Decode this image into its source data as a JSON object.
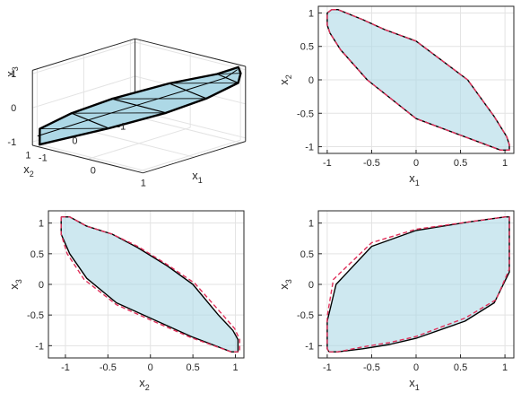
{
  "chart_data": [
    {
      "panel": "3d",
      "type": "3d-surface",
      "xlabel": "x",
      "xlabel_sub": "1",
      "ylabel": "x",
      "ylabel_sub": "2",
      "zlabel": "x",
      "zlabel_sub": "3",
      "xlim": [
        -1.1,
        1.1
      ],
      "ylim": [
        -1.1,
        1.1
      ],
      "zlim": [
        -1.1,
        1.1
      ],
      "xticks": [
        -1,
        0,
        1
      ],
      "yticks": [
        -1,
        0,
        1
      ],
      "zticks": [
        -1,
        0,
        1
      ],
      "grid": true,
      "fill_color": "#add8e6",
      "edge_color": "#000000"
    },
    {
      "panel": "x1x2",
      "type": "line",
      "xlabel": "x",
      "xlabel_sub": "1",
      "ylabel": "x",
      "ylabel_sub": "2",
      "xlim": [
        -1.1,
        1.1
      ],
      "ylim": [
        -1.1,
        1.1
      ],
      "xticks": [
        -1,
        -0.5,
        0,
        0.5,
        1
      ],
      "yticks": [
        -1,
        -0.5,
        0,
        0.5,
        1
      ],
      "grid": true,
      "fill_color": "#add8e6",
      "series": [
        {
          "style": "solid",
          "color": "#000000",
          "x": [
            -0.95,
            -0.88,
            -0.6,
            -0.35,
            0.0,
            0.58,
            0.88,
            1.02,
            1.05,
            1.05,
            0.95,
            0.0,
            -0.55,
            -0.85,
            -0.97,
            -1.0,
            -1.0,
            -0.95
          ],
          "y": [
            1.05,
            1.05,
            0.9,
            0.75,
            0.58,
            0.0,
            -0.55,
            -0.85,
            -0.97,
            -1.05,
            -1.05,
            -0.58,
            0.0,
            0.45,
            0.7,
            0.82,
            1.0,
            1.05
          ]
        },
        {
          "style": "dashed",
          "color": "#e0305a",
          "x": [
            -0.95,
            -0.88,
            -0.6,
            -0.35,
            0.0,
            0.58,
            0.88,
            1.02,
            1.05,
            1.05,
            0.95,
            0.0,
            -0.55,
            -0.85,
            -0.97,
            -1.0,
            -1.0,
            -0.95
          ],
          "y": [
            1.05,
            1.05,
            0.9,
            0.75,
            0.58,
            0.0,
            -0.55,
            -0.85,
            -0.97,
            -1.05,
            -1.05,
            -0.58,
            0.0,
            0.45,
            0.7,
            0.82,
            1.0,
            1.05
          ]
        }
      ]
    },
    {
      "panel": "x2x3",
      "type": "line",
      "xlabel": "x",
      "xlabel_sub": "2",
      "ylabel": "x",
      "ylabel_sub": "3",
      "xlim": [
        -1.2,
        1.1
      ],
      "ylim": [
        -1.2,
        1.2
      ],
      "xticks": [
        -1,
        -0.5,
        0,
        0.5,
        1
      ],
      "yticks": [
        -1,
        -0.5,
        0,
        0.5,
        1
      ],
      "grid": true,
      "fill_color": "#add8e6",
      "series": [
        {
          "style": "solid",
          "color": "#000000",
          "x": [
            -1.05,
            -0.95,
            -0.75,
            -0.45,
            -0.15,
            0.2,
            0.5,
            0.8,
            0.97,
            1.03,
            1.03,
            0.95,
            0.48,
            0.0,
            -0.4,
            -0.75,
            -0.95,
            -1.05,
            -1.05
          ],
          "y": [
            1.1,
            1.1,
            0.95,
            0.82,
            0.6,
            0.3,
            0.0,
            -0.5,
            -0.75,
            -0.9,
            -1.1,
            -1.1,
            -0.85,
            -0.55,
            -0.3,
            0.1,
            0.5,
            0.82,
            1.1
          ]
        },
        {
          "style": "dashed",
          "color": "#e0305a",
          "x": [
            -1.05,
            -0.95,
            -0.75,
            -0.45,
            -0.15,
            0.2,
            0.52,
            0.82,
            0.99,
            1.05,
            1.05,
            0.95,
            0.48,
            0.0,
            -0.4,
            -0.78,
            -0.98,
            -1.05,
            -1.05
          ],
          "y": [
            1.1,
            1.1,
            0.95,
            0.82,
            0.62,
            0.32,
            0.02,
            -0.45,
            -0.72,
            -0.9,
            -1.1,
            -1.1,
            -0.87,
            -0.58,
            -0.33,
            0.08,
            0.5,
            0.82,
            1.1
          ]
        }
      ]
    },
    {
      "panel": "x1x3",
      "type": "line",
      "xlabel": "x",
      "xlabel_sub": "1",
      "ylabel": "x",
      "ylabel_sub": "3",
      "xlim": [
        -1.1,
        1.1
      ],
      "ylim": [
        -1.2,
        1.2
      ],
      "xticks": [
        -1,
        -0.5,
        0,
        0.5,
        1
      ],
      "yticks": [
        -1,
        -0.5,
        0,
        0.5,
        1
      ],
      "grid": true,
      "fill_color": "#add8e6",
      "series": [
        {
          "style": "solid",
          "color": "#000000",
          "x": [
            -0.98,
            -0.88,
            -0.6,
            -0.3,
            0.0,
            0.55,
            0.88,
            1.05,
            1.05,
            1.0,
            0.9,
            0.6,
            0.0,
            -0.5,
            -0.9,
            -1.0,
            -1.0,
            -0.98
          ],
          "y": [
            -1.1,
            -1.1,
            -1.05,
            -0.98,
            -0.88,
            -0.6,
            -0.3,
            0.2,
            1.1,
            1.1,
            1.08,
            1.02,
            0.88,
            0.62,
            0.0,
            -0.6,
            -1.05,
            -1.1
          ]
        },
        {
          "style": "dashed",
          "color": "#e0305a",
          "x": [
            -0.98,
            -0.88,
            -0.6,
            -0.3,
            0.0,
            0.55,
            0.9,
            1.05,
            1.05,
            1.0,
            0.9,
            0.6,
            0.0,
            -0.5,
            -0.93,
            -1.0,
            -1.0,
            -0.98
          ],
          "y": [
            -1.1,
            -1.1,
            -1.02,
            -0.95,
            -0.85,
            -0.55,
            -0.25,
            0.25,
            1.1,
            1.1,
            1.08,
            1.02,
            0.9,
            0.68,
            0.08,
            -0.52,
            -1.05,
            -1.1
          ]
        }
      ]
    }
  ]
}
